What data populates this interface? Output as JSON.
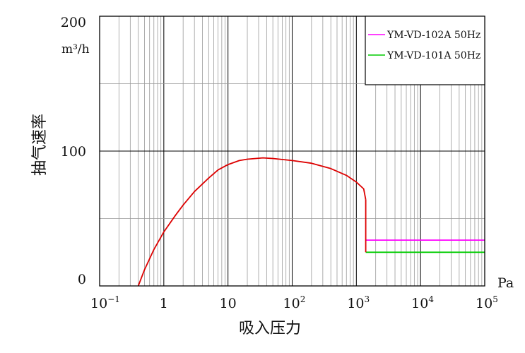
{
  "chart_data": {
    "type": "line",
    "title": "",
    "ylabel": "抽气速率",
    "xlabel": "吸入压力",
    "x_unit": "Pa",
    "y_unit_label": "m³/h",
    "x_scale": "log",
    "xlim": [
      0.1,
      100000
    ],
    "ylim": [
      0,
      200
    ],
    "grid": true,
    "x_ticks": [
      {
        "value": 0.1,
        "base": "10",
        "exp": "−1"
      },
      {
        "value": 1,
        "base": "1",
        "exp": ""
      },
      {
        "value": 10,
        "base": "10",
        "exp": ""
      },
      {
        "value": 100,
        "base": "10",
        "exp": "2"
      },
      {
        "value": 1000,
        "base": "10",
        "exp": "3"
      },
      {
        "value": 10000,
        "base": "10",
        "exp": "4"
      },
      {
        "value": 100000,
        "base": "10",
        "exp": "5"
      }
    ],
    "y_ticks": [
      {
        "value": 0,
        "label": "0"
      },
      {
        "value": 100,
        "label": "100"
      },
      {
        "value": 200,
        "label": "200"
      }
    ],
    "legend": {
      "position": "top-right",
      "entries": [
        {
          "label": "YM-VD-102A 50Hz",
          "color": "#ff00ff"
        },
        {
          "label": "YM-VD-101A 50Hz",
          "color": "#00cc00"
        }
      ]
    },
    "series": [
      {
        "color": "#dd0000",
        "x": [
          0.4,
          0.5,
          0.7,
          1,
          1.5,
          2,
          3,
          5,
          7,
          10,
          15,
          20,
          35,
          50,
          100,
          200,
          400,
          700,
          1000,
          1300,
          1400
        ],
        "y": [
          0,
          12,
          27,
          40,
          52,
          60,
          70,
          80,
          86,
          90,
          93,
          94,
          95,
          94.5,
          93,
          91,
          87,
          82,
          77,
          72,
          64
        ]
      },
      {
        "legend_ref": 0,
        "color": "#ff00ff",
        "x": [
          1400,
          100000
        ],
        "y": [
          34,
          34
        ]
      },
      {
        "legend_ref": 1,
        "color": "#00cc00",
        "x": [
          1400,
          100000
        ],
        "y": [
          25,
          25
        ]
      }
    ],
    "drop_segment": {
      "x": 1400,
      "y_from": 64,
      "y_to": 25,
      "color": "#dd0000"
    }
  }
}
